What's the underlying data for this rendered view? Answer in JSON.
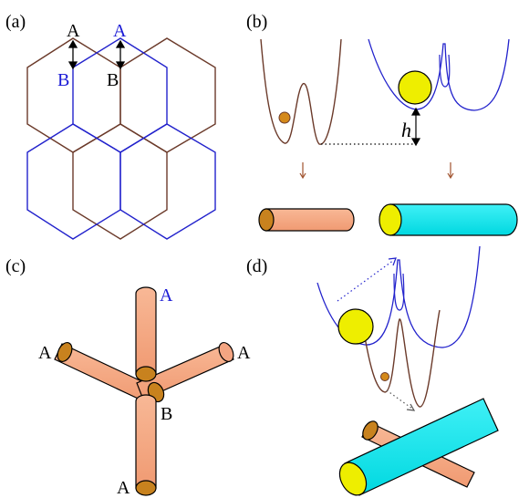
{
  "panels": {
    "a": {
      "label": "(a)",
      "top_a": "A",
      "top_a_blue": "A",
      "left_b_blue": "B",
      "right_b": "B"
    },
    "b": {
      "label": "(b)",
      "height_label": "h"
    },
    "c": {
      "label": "(c)",
      "a_top_blue": "A",
      "a_left": "A",
      "a_right": "A",
      "a_bottom": "A",
      "b_center": "B"
    },
    "d": {
      "label": "(d)"
    }
  },
  "colors": {
    "brown_lattice": "#6b3a2a",
    "blue_lattice": "#2222cc",
    "orange_tube": "#f4a582",
    "cyan_tube": "#00e5ee",
    "end_cap_orange": "#c8821e",
    "yellow_ball": "#eeee00",
    "ball_orange": "#d4891a"
  }
}
